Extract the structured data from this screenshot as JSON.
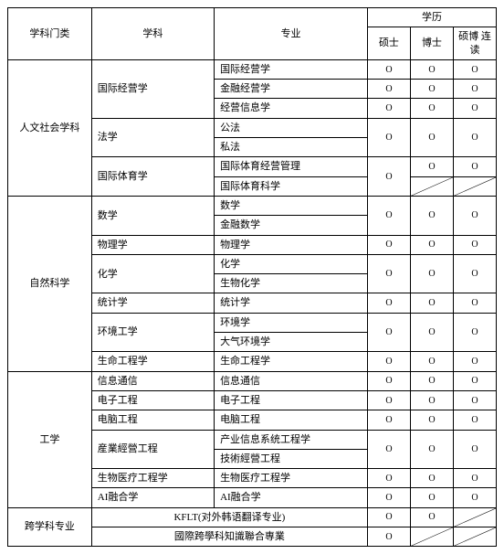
{
  "symbols": {
    "circle": "O"
  },
  "header": {
    "category": "学科门类",
    "discipline": "学科",
    "major": "专业",
    "degree_group": "学历",
    "masters": "硕士",
    "doctor": "博士",
    "combined": "硕博\n连读"
  },
  "categories": [
    {
      "name": "人文社会学科",
      "disciplines": [
        {
          "name": "国际经营学",
          "majors": [
            {
              "name": "国际经营学",
              "m": "O",
              "d": "O",
              "c": "O"
            },
            {
              "name": "金融经营学",
              "m": "O",
              "d": "O",
              "c": "O"
            },
            {
              "name": "经营信息学",
              "m": "O",
              "d": "O",
              "c": "O"
            }
          ]
        },
        {
          "name": "法学",
          "merge_degree_rows": true,
          "majors": [
            {
              "name": "公法"
            },
            {
              "name": "私法"
            }
          ],
          "degree": {
            "m": "O",
            "d": "O",
            "c": "O"
          }
        },
        {
          "name": "国际体育学",
          "merge_masters_rows": true,
          "majors": [
            {
              "name": "国际体育经营管理",
              "d": "O",
              "c": "O"
            },
            {
              "name": "国际体育科学",
              "d": "slash",
              "c": "slash"
            }
          ],
          "m": "O"
        }
      ]
    },
    {
      "name": "自然科学",
      "disciplines": [
        {
          "name": "数学",
          "merge_degree_rows": true,
          "majors": [
            {
              "name": "数学"
            },
            {
              "name": "金融数学"
            }
          ],
          "degree": {
            "m": "O",
            "d": "O",
            "c": "O"
          }
        },
        {
          "name": "物理学",
          "majors": [
            {
              "name": "物理学",
              "m": "O",
              "d": "O",
              "c": "O"
            }
          ]
        },
        {
          "name": "化学",
          "merge_degree_rows": true,
          "majors": [
            {
              "name": "化学"
            },
            {
              "name": "生物化学"
            }
          ],
          "degree": {
            "m": "O",
            "d": "O",
            "c": "O"
          }
        },
        {
          "name": "统计学",
          "majors": [
            {
              "name": "统计学",
              "m": "O",
              "d": "O",
              "c": "O"
            }
          ]
        },
        {
          "name": "环境工学",
          "merge_degree_rows": true,
          "majors": [
            {
              "name": "环境学"
            },
            {
              "name": "大气环境学"
            }
          ],
          "degree": {
            "m": "O",
            "d": "O",
            "c": "O"
          }
        },
        {
          "name": "生命工程学",
          "majors": [
            {
              "name": "生命工程学",
              "m": "O",
              "d": "O",
              "c": "O"
            }
          ]
        }
      ]
    },
    {
      "name": "工学",
      "disciplines": [
        {
          "name": "信息通信",
          "majors": [
            {
              "name": "信息通信",
              "m": "O",
              "d": "O",
              "c": "O"
            }
          ]
        },
        {
          "name": "电子工程",
          "majors": [
            {
              "name": "电子工程",
              "m": "O",
              "d": "O",
              "c": "O"
            }
          ]
        },
        {
          "name": "电脑工程",
          "majors": [
            {
              "name": "电脑工程",
              "m": "O",
              "d": "O",
              "c": "O"
            }
          ]
        },
        {
          "name": "産業經營工程",
          "merge_degree_rows": true,
          "majors": [
            {
              "name": "产业信息系统工程学"
            },
            {
              "name": "技術經營工程"
            }
          ],
          "degree": {
            "m": "O",
            "d": "O",
            "c": "O"
          }
        },
        {
          "name": "生物医疗工程学",
          "majors": [
            {
              "name": "生物医疗工程学",
              "m": "O",
              "d": "O",
              "c": "O"
            }
          ]
        },
        {
          "name": "AI融合学",
          "majors": [
            {
              "name": "AI融合学",
              "m": "O",
              "d": "O",
              "c": "O"
            }
          ]
        }
      ]
    },
    {
      "name": "跨学科专业",
      "disciplines": [
        {
          "name_span_major": true,
          "majors": [
            {
              "name": "KFLT(对外韩语翻译专业)",
              "m": "O",
              "d": "O",
              "c": "slash"
            },
            {
              "name": "國際跨學科知識聯合専業",
              "m": "O",
              "d": "slash",
              "c": "slash"
            }
          ]
        }
      ]
    }
  ]
}
